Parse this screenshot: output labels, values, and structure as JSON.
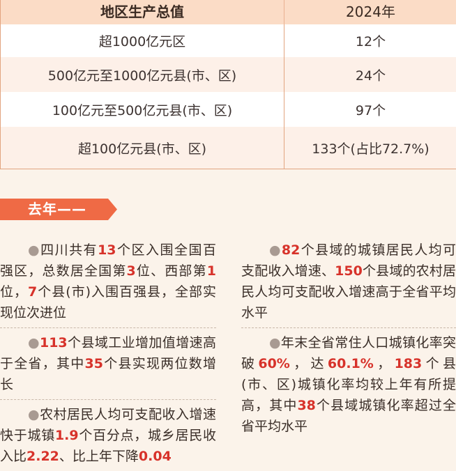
{
  "table": {
    "headers": [
      "地区生产总值",
      "2024年"
    ],
    "rows": [
      [
        "超1000亿元区",
        "12个"
      ],
      [
        "500亿元至1000亿元县(市、区)",
        "24个"
      ],
      [
        "100亿元至500亿元县(市、区)",
        "97个"
      ],
      [
        "超100亿元县(市、区)",
        "133个(占比72.7%)"
      ]
    ]
  },
  "section": {
    "title": "去年——"
  },
  "left_column": [
    {
      "bullet": "●",
      "t1": "四川共有",
      "n1": "13",
      "t2": "个区入围全国百强区，总数居全国第",
      "n2": "3",
      "t3": "位、西部第",
      "n3": "1",
      "t4": "位，",
      "n4": "7",
      "t5": "个县(市)入围百强县，全部实现位次进位"
    },
    {
      "bullet": "●",
      "n1": "113",
      "t1": "个县域工业增加值增速高于全省，其中",
      "n2": "35",
      "t2": "个县实现两位数增长"
    },
    {
      "bullet": "●",
      "t1": "农村居民人均可支配收入增速快于城镇",
      "n1": "1.9",
      "t2": "个百分点，城乡居民收入比",
      "n2": "2.22",
      "t3": "、比上年下降",
      "n3": "0.04"
    }
  ],
  "right_column": [
    {
      "bullet": "●",
      "n1": "82",
      "t1": "个县域的城镇居民人均可支配收入增速、",
      "n2": "150",
      "t2": "个县域的农村居民人均可支配收入增速高于全省平均水平"
    },
    {
      "bullet": "●",
      "t1": "年末全省常住人口城镇化率突破",
      "n1": "60%",
      "t2": "，达",
      "n2": "60.1%",
      "t3": "，",
      "n3": "183",
      "t4": "个县(市、区)城镇化率均较上年有所提高，其中",
      "n4": "38",
      "t5": "个县域城镇化率超过全省平均水平"
    }
  ],
  "colors": {
    "accent_red": "#d7322a",
    "banner_orange": "#ef6a45",
    "table_header": "#fbdcc6",
    "table_border": "#e2a47f",
    "page_bg": "#fbf3ea"
  }
}
